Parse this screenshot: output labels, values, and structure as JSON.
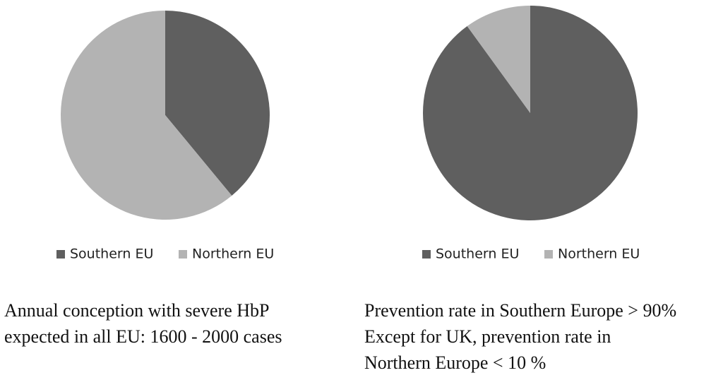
{
  "chart_data": [
    {
      "type": "pie",
      "categories": [
        "Southern EU",
        "Northern EU"
      ],
      "values": [
        39,
        61
      ],
      "colors": [
        "#5f5f5f",
        "#b3b3b3"
      ],
      "caption": [
        "Annual conception with severe HbP",
        "expected in all EU: 1600 - 2000 cases"
      ]
    },
    {
      "type": "pie",
      "categories": [
        "Southern EU",
        "Northern EU"
      ],
      "values": [
        90,
        10
      ],
      "colors": [
        "#5f5f5f",
        "#b3b3b3"
      ],
      "caption": [
        "Prevention rate in Southern Europe > 90%",
        "Except for UK,  prevention rate in",
        "Northern Europe < 10 %"
      ]
    }
  ]
}
